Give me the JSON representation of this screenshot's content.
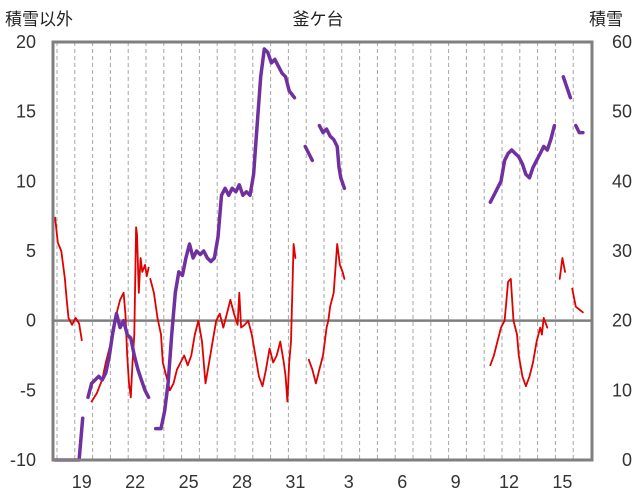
{
  "chart_data": {
    "type": "line",
    "title": "釜ケ台",
    "left_axis_label": "積雪以外",
    "right_axis_label": "積雪",
    "left_ylim": [
      -10,
      20
    ],
    "right_ylim": [
      0,
      60
    ],
    "left_ticks": [
      "20",
      "15",
      "10",
      "5",
      "0",
      "-5",
      "-10"
    ],
    "right_ticks": [
      "60",
      "50",
      "40",
      "30",
      "20",
      "10",
      "0"
    ],
    "x_tick_labels": [
      "19",
      "22",
      "25",
      "28",
      "31",
      "3",
      "6",
      "9",
      "12",
      "15"
    ],
    "x_tick_days": [
      1,
      4,
      7,
      10,
      13,
      16,
      19,
      22,
      25,
      28
    ],
    "x_range_days": [
      0,
      30
    ],
    "grid": "vertical dashed daily, bold zero line",
    "series": [
      {
        "axis": "left",
        "color": "#e00000",
        "segments": [
          [
            [
              -0.05,
              7.4
            ],
            [
              0.1,
              5.6
            ],
            [
              0.3,
              5.0
            ],
            [
              0.5,
              3.0
            ],
            [
              0.6,
              1.5
            ],
            [
              0.7,
              0.2
            ],
            [
              0.9,
              -0.3
            ],
            [
              1.1,
              0.2
            ],
            [
              1.3,
              -0.2
            ],
            [
              1.45,
              -1.4
            ]
          ],
          [
            [
              2.0,
              -5.8
            ],
            [
              2.3,
              -5.2
            ],
            [
              2.6,
              -4.2
            ],
            [
              2.8,
              -3.0
            ],
            [
              3.0,
              -2.0
            ],
            [
              3.1,
              -1.5
            ],
            [
              3.25,
              -0.8
            ],
            [
              3.4,
              0.5
            ],
            [
              3.6,
              1.5
            ],
            [
              3.8,
              2.0
            ],
            [
              3.9,
              0.5
            ],
            [
              4.0,
              -2.5
            ],
            [
              4.1,
              -4.5
            ],
            [
              4.2,
              -5.5
            ],
            [
              4.3,
              -3.0
            ],
            [
              4.4,
              -1.0
            ],
            [
              4.5,
              6.7
            ],
            [
              4.55,
              6.2
            ],
            [
              4.65,
              2.0
            ],
            [
              4.75,
              4.5
            ],
            [
              4.85,
              3.5
            ],
            [
              5.0,
              4.0
            ],
            [
              5.1,
              3.2
            ],
            [
              5.2,
              3.8
            ]
          ],
          [
            [
              5.3,
              3.0
            ],
            [
              5.5,
              2.0
            ],
            [
              5.7,
              0.2
            ],
            [
              5.9,
              -1.0
            ],
            [
              6.0,
              -3.0
            ],
            [
              6.2,
              -4.0
            ],
            [
              6.4,
              -5.0
            ],
            [
              6.6,
              -4.5
            ],
            [
              6.8,
              -3.5
            ],
            [
              7.0,
              -3.0
            ],
            [
              7.2,
              -2.5
            ],
            [
              7.4,
              -3.2
            ],
            [
              7.6,
              -2.5
            ],
            [
              7.8,
              -1.0
            ],
            [
              8.0,
              0.0
            ],
            [
              8.2,
              -1.5
            ],
            [
              8.4,
              -4.5
            ],
            [
              8.6,
              -3.0
            ],
            [
              8.8,
              -1.5
            ],
            [
              9.0,
              0.0
            ],
            [
              9.2,
              0.5
            ],
            [
              9.4,
              -0.5
            ],
            [
              9.6,
              0.5
            ],
            [
              9.8,
              1.5
            ],
            [
              10.0,
              0.5
            ],
            [
              10.2,
              -0.3
            ],
            [
              10.3,
              2.0
            ],
            [
              10.4,
              -0.5
            ],
            [
              10.6,
              -0.3
            ],
            [
              10.8,
              0.0
            ],
            [
              11.0,
              -1.0
            ],
            [
              11.2,
              -2.5
            ],
            [
              11.4,
              -4.0
            ],
            [
              11.6,
              -4.7
            ],
            [
              11.8,
              -3.5
            ],
            [
              12.0,
              -2.0
            ],
            [
              12.2,
              -3.0
            ],
            [
              12.4,
              -2.5
            ],
            [
              12.6,
              -1.5
            ],
            [
              12.8,
              -3.0
            ],
            [
              12.9,
              -4.0
            ],
            [
              13.0,
              -5.8
            ],
            [
              13.1,
              -3.0
            ],
            [
              13.2,
              -1.5
            ],
            [
              13.35,
              5.5
            ],
            [
              13.45,
              4.5
            ]
          ],
          [
            [
              14.2,
              -2.8
            ],
            [
              14.4,
              -3.5
            ],
            [
              14.6,
              -4.5
            ],
            [
              14.8,
              -3.5
            ],
            [
              15.0,
              -2.5
            ],
            [
              15.2,
              -0.5
            ],
            [
              15.3,
              0.0
            ],
            [
              15.4,
              1.0
            ],
            [
              15.6,
              2.0
            ],
            [
              15.8,
              5.5
            ],
            [
              15.95,
              4.0
            ],
            [
              16.1,
              3.5
            ],
            [
              16.2,
              3.0
            ]
          ],
          [
            [
              24.4,
              -3.2
            ],
            [
              24.6,
              -2.5
            ],
            [
              24.8,
              -1.5
            ],
            [
              25.0,
              -0.5
            ],
            [
              25.2,
              0.0
            ],
            [
              25.4,
              2.8
            ],
            [
              25.55,
              3.0
            ],
            [
              25.7,
              0.0
            ],
            [
              25.9,
              -1.0
            ],
            [
              26.0,
              -2.5
            ],
            [
              26.2,
              -4.0
            ],
            [
              26.4,
              -4.7
            ],
            [
              26.6,
              -4.0
            ],
            [
              26.8,
              -3.0
            ],
            [
              27.0,
              -1.5
            ],
            [
              27.2,
              -0.5
            ],
            [
              27.3,
              -1.0
            ],
            [
              27.4,
              0.2
            ],
            [
              27.6,
              -0.5
            ]
          ],
          [
            [
              28.3,
              3.0
            ],
            [
              28.45,
              4.5
            ],
            [
              28.6,
              3.5
            ]
          ],
          [
            [
              29.0,
              2.3
            ],
            [
              29.2,
              1.0
            ],
            [
              29.4,
              0.8
            ],
            [
              29.6,
              0.6
            ]
          ]
        ]
      },
      {
        "axis": "right",
        "color": "#7030a0",
        "segments": [
          [
            [
              -0.05,
              0.0
            ],
            [
              1.3,
              0.0
            ],
            [
              1.4,
              3.0
            ],
            [
              1.5,
              6.0
            ]
          ],
          [
            [
              1.8,
              9.0
            ],
            [
              2.0,
              11.0
            ],
            [
              2.2,
              11.5
            ],
            [
              2.4,
              12.0
            ],
            [
              2.6,
              11.5
            ],
            [
              2.8,
              12.5
            ],
            [
              3.0,
              15.0
            ],
            [
              3.2,
              18.5
            ],
            [
              3.4,
              21.0
            ],
            [
              3.6,
              19.0
            ],
            [
              3.8,
              20.0
            ],
            [
              4.0,
              18.0
            ],
            [
              4.2,
              17.5
            ],
            [
              4.4,
              15.0
            ],
            [
              4.6,
              13.0
            ],
            [
              4.8,
              11.5
            ],
            [
              5.0,
              10.0
            ],
            [
              5.2,
              9.0
            ]
          ],
          [
            [
              5.6,
              4.5
            ],
            [
              5.9,
              4.5
            ],
            [
              6.1,
              7.0
            ],
            [
              6.3,
              11.0
            ],
            [
              6.5,
              18.0
            ],
            [
              6.7,
              24.0
            ],
            [
              6.9,
              27.0
            ],
            [
              7.1,
              26.5
            ],
            [
              7.3,
              29.0
            ],
            [
              7.5,
              31.0
            ],
            [
              7.7,
              29.0
            ],
            [
              7.9,
              30.0
            ],
            [
              8.1,
              29.5
            ],
            [
              8.3,
              30.0
            ],
            [
              8.5,
              29.0
            ],
            [
              8.7,
              28.5
            ],
            [
              8.9,
              29.0
            ],
            [
              9.1,
              32.0
            ],
            [
              9.3,
              38.0
            ],
            [
              9.5,
              39.0
            ],
            [
              9.7,
              38.0
            ],
            [
              9.9,
              39.0
            ],
            [
              10.1,
              38.5
            ],
            [
              10.3,
              39.5
            ],
            [
              10.5,
              38.0
            ],
            [
              10.7,
              38.5
            ],
            [
              10.9,
              38.0
            ],
            [
              11.1,
              41.0
            ],
            [
              11.3,
              48.0
            ],
            [
              11.5,
              55.0
            ],
            [
              11.7,
              59.0
            ],
            [
              11.9,
              58.5
            ],
            [
              12.1,
              57.0
            ],
            [
              12.3,
              57.5
            ],
            [
              12.5,
              56.5
            ],
            [
              12.7,
              55.5
            ],
            [
              12.9,
              55.0
            ],
            [
              13.1,
              53.0
            ],
            [
              13.4,
              52.0
            ]
          ],
          [
            [
              14.0,
              45.0
            ],
            [
              14.2,
              44.0
            ],
            [
              14.4,
              43.0
            ]
          ],
          [
            [
              14.8,
              48.0
            ],
            [
              15.0,
              47.0
            ],
            [
              15.2,
              47.5
            ],
            [
              15.4,
              46.5
            ],
            [
              15.6,
              46.0
            ],
            [
              15.8,
              45.0
            ],
            [
              15.9,
              42.0
            ],
            [
              16.0,
              40.5
            ],
            [
              16.2,
              39.0
            ]
          ],
          [
            [
              24.4,
              37.0
            ],
            [
              24.6,
              38.0
            ],
            [
              24.8,
              39.0
            ],
            [
              25.0,
              40.0
            ],
            [
              25.2,
              43.0
            ],
            [
              25.4,
              44.0
            ],
            [
              25.6,
              44.5
            ],
            [
              25.8,
              44.0
            ],
            [
              26.0,
              43.5
            ],
            [
              26.2,
              42.5
            ],
            [
              26.4,
              41.0
            ],
            [
              26.6,
              40.5
            ],
            [
              26.8,
              42.0
            ],
            [
              27.0,
              43.0
            ],
            [
              27.2,
              44.0
            ],
            [
              27.4,
              45.0
            ],
            [
              27.6,
              44.5
            ],
            [
              27.8,
              46.0
            ],
            [
              28.0,
              48.0
            ]
          ],
          [
            [
              28.5,
              55.0
            ],
            [
              28.7,
              53.5
            ],
            [
              28.9,
              52.0
            ]
          ],
          [
            [
              29.2,
              48.0
            ],
            [
              29.4,
              47.0
            ],
            [
              29.6,
              47.0
            ]
          ]
        ]
      }
    ]
  }
}
